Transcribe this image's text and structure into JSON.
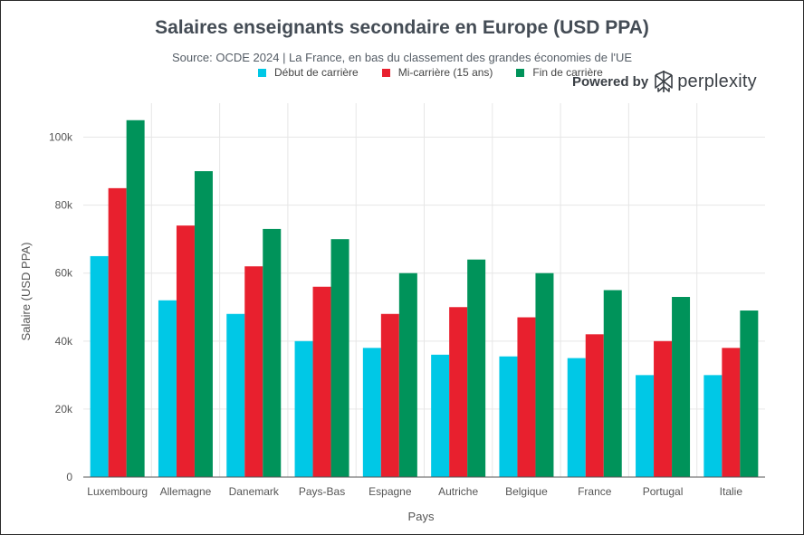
{
  "chart_data": {
    "type": "bar",
    "title": "Salaires enseignants secondaire en Europe (USD PPA)",
    "subtitle": "Source: OCDE 2024 | La France, en bas du classement des grandes économies de l'UE",
    "xlabel": "Pays",
    "ylabel": "Salaire (USD PPA)",
    "ylim": [
      0,
      110000
    ],
    "yticks": [
      0,
      20000,
      40000,
      60000,
      80000,
      100000
    ],
    "ytick_labels": [
      "0",
      "20k",
      "40k",
      "60k",
      "80k",
      "100k"
    ],
    "grid": true,
    "legend_position": "top",
    "categories": [
      "Luxembourg",
      "Allemagne",
      "Danemark",
      "Pays-Bas",
      "Espagne",
      "Autriche",
      "Belgique",
      "France",
      "Portugal",
      "Italie"
    ],
    "series": [
      {
        "name": "Début de carrière",
        "color": "#00c8e6",
        "values": [
          65000,
          52000,
          48000,
          40000,
          38000,
          36000,
          35500,
          35000,
          30000,
          30000
        ]
      },
      {
        "name": "Mi-carrière (15 ans)",
        "color": "#e8202e",
        "values": [
          85000,
          74000,
          62000,
          56000,
          48000,
          50000,
          47000,
          42000,
          40000,
          38000
        ]
      },
      {
        "name": "Fin de carrière",
        "color": "#00935a",
        "values": [
          105000,
          90000,
          73000,
          70000,
          60000,
          64000,
          60000,
          55000,
          53000,
          49000
        ]
      }
    ]
  },
  "branding": {
    "powered_by": "Powered by",
    "brand": "perplexity",
    "logo_icon": "perplexity-logo-icon"
  }
}
